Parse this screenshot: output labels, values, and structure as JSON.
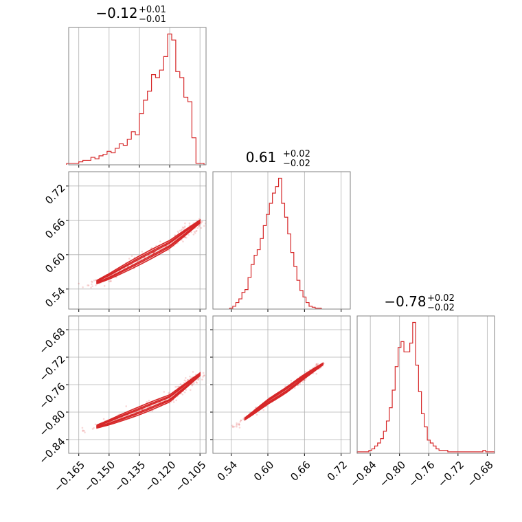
{
  "figure": {
    "style": {
      "color": "#d62728",
      "grid_color": "#b0b0b0",
      "frame_color": "#808080"
    }
  },
  "chart_data": [
    {
      "type": "histogram",
      "panel": "0-0",
      "title": {
        "main": "−0.12",
        "upper": "+0.01",
        "lower": "−0.01"
      },
      "xlim": [
        -0.17,
        -0.102
      ],
      "x": [
        -0.17,
        -0.168,
        -0.166,
        -0.164,
        -0.162,
        -0.16,
        -0.158,
        -0.156,
        -0.154,
        -0.152,
        -0.15,
        -0.148,
        -0.146,
        -0.144,
        -0.142,
        -0.14,
        -0.138,
        -0.136,
        -0.134,
        -0.132,
        -0.13,
        -0.128,
        -0.126,
        -0.124,
        -0.122,
        -0.12,
        -0.118,
        -0.116,
        -0.114,
        -0.112,
        -0.11,
        -0.108,
        -0.106,
        -0.104
      ],
      "counts": [
        1,
        1,
        1,
        2,
        3,
        3,
        5,
        4,
        6,
        7,
        9,
        8,
        11,
        14,
        13,
        17,
        22,
        20,
        34,
        43,
        49,
        60,
        58,
        63,
        72,
        87,
        83,
        62,
        58,
        45,
        42,
        18,
        1,
        1
      ],
      "grid": true
    },
    {
      "type": "histogram",
      "panel": "1-1",
      "title": {
        "main": "0.61",
        "upper": "+0.02",
        "lower": "−0.02"
      },
      "xlim": [
        0.51,
        0.735
      ],
      "x": [
        0.54,
        0.545,
        0.55,
        0.555,
        0.56,
        0.565,
        0.57,
        0.575,
        0.58,
        0.585,
        0.59,
        0.595,
        0.6,
        0.605,
        0.61,
        0.615,
        0.62,
        0.625,
        0.63,
        0.635,
        0.64,
        0.645,
        0.65,
        0.655,
        0.66,
        0.665,
        0.67,
        0.675,
        0.68,
        0.685
      ],
      "counts": [
        1,
        3,
        7,
        11,
        18,
        21,
        34,
        48,
        58,
        64,
        76,
        90,
        102,
        114,
        125,
        132,
        141,
        114,
        99,
        81,
        61,
        46,
        31,
        20,
        13,
        7,
        3,
        2,
        1,
        1
      ],
      "grid": true
    },
    {
      "type": "histogram",
      "panel": "2-2",
      "title": {
        "main": "−0.78",
        "upper": "+0.02",
        "lower": "−0.02"
      },
      "xlim": [
        -0.858,
        -0.67
      ],
      "x": [
        -0.856,
        -0.852,
        -0.848,
        -0.844,
        -0.84,
        -0.836,
        -0.832,
        -0.828,
        -0.824,
        -0.82,
        -0.816,
        -0.812,
        -0.808,
        -0.804,
        -0.8,
        -0.796,
        -0.792,
        -0.788,
        -0.784,
        -0.78,
        -0.776,
        -0.772,
        -0.768,
        -0.764,
        -0.76,
        -0.756,
        -0.752,
        -0.748,
        -0.744,
        -0.74,
        -0.736,
        -0.732,
        -0.728,
        -0.724,
        -0.72,
        -0.716,
        -0.712,
        -0.708,
        -0.704,
        -0.7,
        -0.696,
        -0.692,
        -0.688,
        -0.684,
        -0.68,
        -0.676,
        -0.672
      ],
      "counts": [
        1,
        1,
        1,
        1,
        2,
        3,
        5,
        7,
        10,
        15,
        22,
        31,
        43,
        59,
        72,
        76,
        69,
        69,
        75,
        89,
        60,
        42,
        27,
        18,
        9,
        7,
        5,
        3,
        2,
        2,
        2,
        1,
        1,
        1,
        1,
        1,
        1,
        1,
        1,
        1,
        1,
        1,
        1,
        2,
        1,
        1,
        1
      ],
      "grid": true
    },
    {
      "type": "scatter-contour",
      "panel": "1-0",
      "xlim": [
        -0.17,
        -0.102
      ],
      "ylim": [
        0.505,
        0.745
      ],
      "ridge": [
        {
          "x": -0.165,
          "y": 0.538
        },
        {
          "x": -0.15,
          "y": 0.562
        },
        {
          "x": -0.135,
          "y": 0.59
        },
        {
          "x": -0.12,
          "y": 0.618
        },
        {
          "x": -0.105,
          "y": 0.658
        }
      ],
      "spread": {
        "x": 0.006,
        "y": 0.008
      },
      "grid": true
    },
    {
      "type": "scatter-contour",
      "panel": "2-0",
      "xlim": [
        -0.17,
        -0.102
      ],
      "ylim": [
        -0.86,
        -0.66
      ],
      "ridge": [
        {
          "x": -0.165,
          "y": -0.83
        },
        {
          "x": -0.15,
          "y": -0.815
        },
        {
          "x": -0.135,
          "y": -0.798
        },
        {
          "x": -0.12,
          "y": -0.78
        },
        {
          "x": -0.105,
          "y": -0.745
        }
      ],
      "spread": {
        "x": 0.006,
        "y": 0.006
      },
      "grid": true
    },
    {
      "type": "scatter-contour",
      "panel": "2-1",
      "xlim": [
        0.51,
        0.735
      ],
      "ylim": [
        -0.86,
        -0.66
      ],
      "ridge": [
        {
          "x": 0.54,
          "y": -0.824
        },
        {
          "x": 0.57,
          "y": -0.805
        },
        {
          "x": 0.6,
          "y": -0.785
        },
        {
          "x": 0.63,
          "y": -0.768
        },
        {
          "x": 0.66,
          "y": -0.748
        },
        {
          "x": 0.69,
          "y": -0.73
        }
      ],
      "spread": {
        "x": 0.01,
        "y": 0.004
      },
      "grid": true
    }
  ],
  "axes": {
    "x0_ticks": [
      -0.165,
      -0.15,
      -0.135,
      -0.12,
      -0.105
    ],
    "x0_labels": [
      "−0.165",
      "−0.150",
      "−0.135",
      "−0.120",
      "−0.105"
    ],
    "x1_ticks": [
      0.54,
      0.6,
      0.66,
      0.72
    ],
    "x1_labels": [
      "0.54",
      "0.60",
      "0.66",
      "0.72"
    ],
    "x2_ticks": [
      -0.84,
      -0.8,
      -0.76,
      -0.72,
      -0.68
    ],
    "x2_labels": [
      "−0.84",
      "−0.80",
      "−0.76",
      "−0.72",
      "−0.68"
    ],
    "y1_ticks": [
      0.54,
      0.6,
      0.66,
      0.72
    ],
    "y1_labels": [
      "0.54",
      "0.60",
      "0.66",
      "0.72"
    ],
    "y2_ticks": [
      -0.84,
      -0.8,
      -0.76,
      -0.72,
      -0.68
    ],
    "y2_labels": [
      "−0.84",
      "−0.80",
      "−0.76",
      "−0.72",
      "−0.68"
    ]
  }
}
